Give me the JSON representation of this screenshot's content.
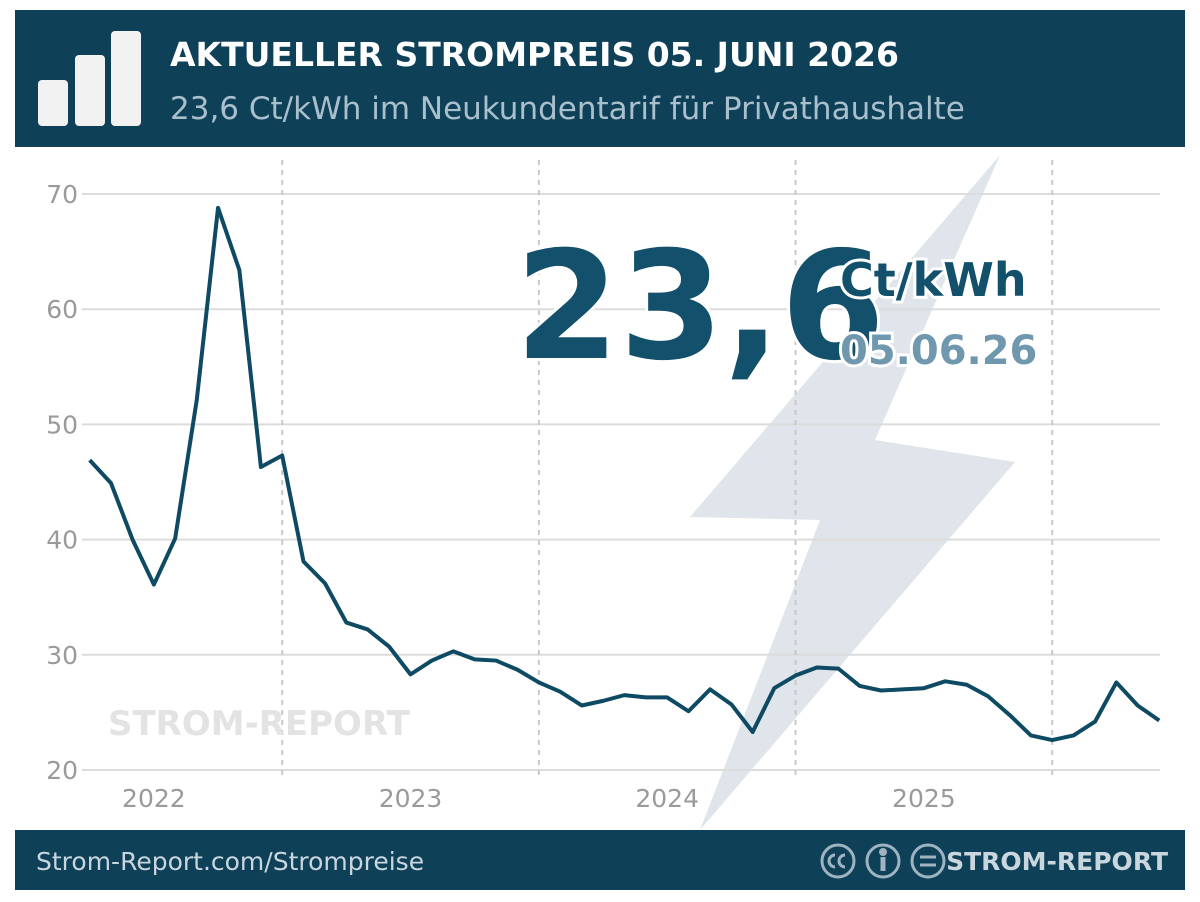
{
  "chart_data": {
    "type": "line",
    "title": "AKTUELLER STROMPREIS 05. JUNI 2026",
    "subtitle": "23,6 Ct/kWh im Neukundentarif für Privathaushalte",
    "headline_value": "23,6",
    "headline_unit": "Ct/kWh",
    "headline_date": "05.06.26",
    "watermark": "STROM-REPORT",
    "x": [
      2022.25,
      2022.333,
      2022.417,
      2022.5,
      2022.583,
      2022.667,
      2022.75,
      2022.833,
      2022.917,
      2023.0,
      2023.083,
      2023.167,
      2023.25,
      2023.333,
      2023.417,
      2023.5,
      2023.583,
      2023.667,
      2023.75,
      2023.833,
      2023.917,
      2024.0,
      2024.083,
      2024.167,
      2024.25,
      2024.333,
      2024.417,
      2024.5,
      2024.583,
      2024.667,
      2024.75,
      2024.833,
      2024.917,
      2025.0,
      2025.083,
      2025.167,
      2025.25,
      2025.333,
      2025.417,
      2025.5,
      2025.583,
      2025.667,
      2025.75,
      2025.833,
      2025.917,
      2026.0,
      2026.083,
      2026.167,
      2026.25,
      2026.333,
      2026.417
    ],
    "series": [
      {
        "color": "#0e4a63",
        "values": [
          46.9,
          44.9,
          40.0,
          36.1,
          40.1,
          52.1,
          68.8,
          63.4,
          46.3,
          47.3,
          38.1,
          36.2,
          32.8,
          32.2,
          30.7,
          28.3,
          29.5,
          30.3,
          29.6,
          29.5,
          28.7,
          27.6,
          26.8,
          25.6,
          26.0,
          26.5,
          26.3,
          26.3,
          25.1,
          27.0,
          25.7,
          23.3,
          27.1,
          28.2,
          28.9,
          28.8,
          27.3,
          26.9,
          27.0,
          27.1,
          27.7,
          27.4,
          26.4,
          24.8,
          23.0,
          22.6,
          23.0,
          24.2,
          27.6,
          25.6,
          24.3
        ]
      }
    ],
    "xlim": [
      2022.22,
      2026.42
    ],
    "ylim": [
      20,
      70
    ],
    "yticks": [
      20,
      30,
      40,
      50,
      60,
      70
    ],
    "xticks": [
      {
        "value": 2022.5,
        "label": "2022"
      },
      {
        "value": 2023.5,
        "label": "2023"
      },
      {
        "value": 2024.5,
        "label": "2024"
      },
      {
        "value": 2025.5,
        "label": "2025"
      }
    ],
    "x_dividers": [
      2023,
      2024,
      2025,
      2026
    ],
    "grid": true
  },
  "footer": {
    "url": "Strom-Report.com/Strompreise",
    "brand": "STROM-REPORT"
  }
}
